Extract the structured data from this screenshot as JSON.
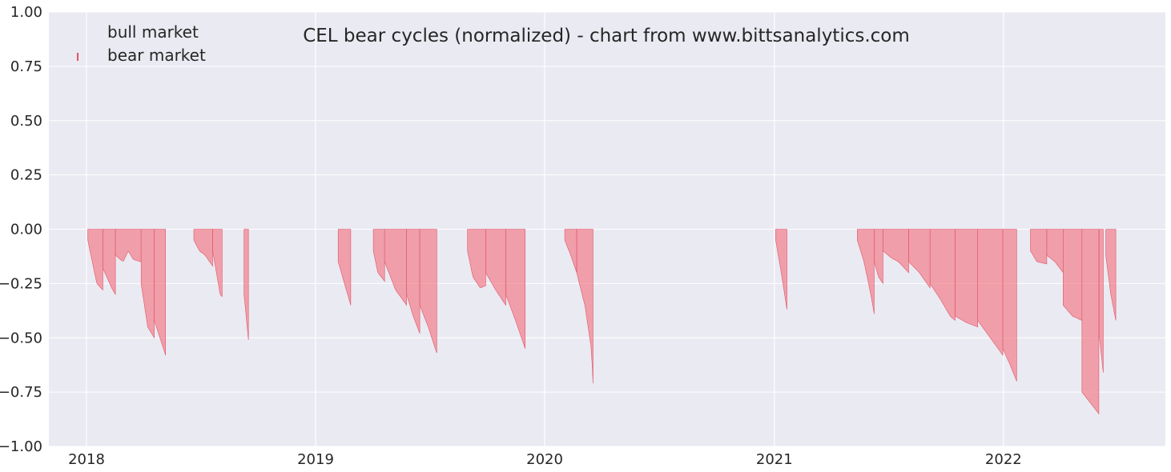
{
  "chart_data": {
    "type": "bar",
    "title": "CEL bear cycles (normalized)  - chart from www.bittsanalytics.com",
    "xlabel": "",
    "ylabel": "",
    "ylim": [
      -1.0,
      1.0
    ],
    "yticks": [
      "1.00",
      "0.75",
      "0.50",
      "0.25",
      "0.00",
      "−0.25",
      "−0.50",
      "−0.75",
      "−1.00"
    ],
    "ytick_values": [
      1.0,
      0.75,
      0.5,
      0.25,
      0.0,
      -0.25,
      -0.5,
      -0.75,
      -1.0
    ],
    "xlim": [
      "2017-11-01",
      "2022-09-15"
    ],
    "xticks": [
      {
        "date": "2017-12-31",
        "label": "2018"
      },
      {
        "date": "2018-12-31",
        "label": "2019"
      },
      {
        "date": "2019-12-31",
        "label": "2020"
      },
      {
        "date": "2020-12-31",
        "label": "2021"
      },
      {
        "date": "2021-12-31",
        "label": "2022"
      }
    ],
    "grid": true,
    "legend_position": "top-left",
    "colors": {
      "background": "#eaeaf2",
      "bear": "#f27d8b",
      "bear_edge": "#e05566",
      "bull": "#eaeaf2"
    },
    "series": [
      {
        "name": "bull market",
        "values": []
      },
      {
        "name": "bear market",
        "segments": [
          {
            "start": "2018-01-02",
            "end": "2018-01-26",
            "points": [
              [
                0,
                -0.05
              ],
              [
                0.3,
                -0.15
              ],
              [
                0.6,
                -0.25
              ],
              [
                1,
                -0.28
              ]
            ]
          },
          {
            "start": "2018-01-26",
            "end": "2018-02-15",
            "points": [
              [
                0,
                -0.18
              ],
              [
                0.4,
                -0.23
              ],
              [
                0.7,
                -0.27
              ],
              [
                1,
                -0.3
              ]
            ]
          },
          {
            "start": "2018-02-15",
            "end": "2018-03-28",
            "points": [
              [
                0,
                -0.12
              ],
              [
                0.3,
                -0.15
              ],
              [
                0.5,
                -0.1
              ],
              [
                0.7,
                -0.14
              ],
              [
                1,
                -0.15
              ]
            ]
          },
          {
            "start": "2018-03-28",
            "end": "2018-04-18",
            "points": [
              [
                0,
                -0.25
              ],
              [
                0.5,
                -0.45
              ],
              [
                1,
                -0.5
              ]
            ]
          },
          {
            "start": "2018-04-18",
            "end": "2018-05-06",
            "points": [
              [
                0,
                -0.42
              ],
              [
                0.5,
                -0.5
              ],
              [
                1,
                -0.58
              ]
            ]
          },
          {
            "start": "2018-06-20",
            "end": "2018-07-20",
            "points": [
              [
                0,
                -0.05
              ],
              [
                0.3,
                -0.1
              ],
              [
                0.6,
                -0.12
              ],
              [
                1,
                -0.17
              ]
            ]
          },
          {
            "start": "2018-07-20",
            "end": "2018-08-04",
            "points": [
              [
                0,
                -0.1
              ],
              [
                0.4,
                -0.2
              ],
              [
                0.8,
                -0.3
              ],
              [
                1,
                -0.31
              ]
            ]
          },
          {
            "start": "2018-09-08",
            "end": "2018-09-15",
            "points": [
              [
                0,
                -0.3
              ],
              [
                1,
                -0.51
              ]
            ]
          },
          {
            "start": "2019-02-05",
            "end": "2019-02-25",
            "points": [
              [
                0,
                -0.15
              ],
              [
                0.5,
                -0.25
              ],
              [
                1,
                -0.35
              ]
            ]
          },
          {
            "start": "2019-04-02",
            "end": "2019-04-20",
            "points": [
              [
                0,
                -0.1
              ],
              [
                0.4,
                -0.2
              ],
              [
                1,
                -0.24
              ]
            ]
          },
          {
            "start": "2019-04-20",
            "end": "2019-05-25",
            "points": [
              [
                0,
                -0.15
              ],
              [
                0.5,
                -0.28
              ],
              [
                1,
                -0.35
              ]
            ]
          },
          {
            "start": "2019-05-25",
            "end": "2019-06-15",
            "points": [
              [
                0,
                -0.3
              ],
              [
                0.5,
                -0.4
              ],
              [
                1,
                -0.48
              ]
            ]
          },
          {
            "start": "2019-06-15",
            "end": "2019-07-12",
            "points": [
              [
                0,
                -0.35
              ],
              [
                0.5,
                -0.45
              ],
              [
                1,
                -0.57
              ]
            ]
          },
          {
            "start": "2019-08-30",
            "end": "2019-09-28",
            "points": [
              [
                0,
                -0.1
              ],
              [
                0.3,
                -0.22
              ],
              [
                0.7,
                -0.27
              ],
              [
                1,
                -0.26
              ]
            ]
          },
          {
            "start": "2019-09-28",
            "end": "2019-10-30",
            "points": [
              [
                0,
                -0.2
              ],
              [
                0.5,
                -0.28
              ],
              [
                1,
                -0.35
              ]
            ]
          },
          {
            "start": "2019-10-30",
            "end": "2019-11-30",
            "points": [
              [
                0,
                -0.3
              ],
              [
                0.5,
                -0.42
              ],
              [
                1,
                -0.55
              ]
            ]
          },
          {
            "start": "2020-02-01",
            "end": "2020-02-20",
            "points": [
              [
                0,
                -0.05
              ],
              [
                0.5,
                -0.12
              ],
              [
                1,
                -0.2
              ]
            ]
          },
          {
            "start": "2020-02-20",
            "end": "2020-03-17",
            "points": [
              [
                0,
                -0.2
              ],
              [
                0.5,
                -0.35
              ],
              [
                0.9,
                -0.55
              ],
              [
                1,
                -0.71
              ]
            ]
          },
          {
            "start": "2021-01-02",
            "end": "2021-01-20",
            "points": [
              [
                0,
                -0.05
              ],
              [
                0.5,
                -0.2
              ],
              [
                1,
                -0.37
              ]
            ]
          },
          {
            "start": "2021-05-12",
            "end": "2021-06-08",
            "points": [
              [
                0,
                -0.05
              ],
              [
                0.4,
                -0.15
              ],
              [
                0.8,
                -0.3
              ],
              [
                1,
                -0.39
              ]
            ]
          },
          {
            "start": "2021-06-08",
            "end": "2021-06-22",
            "points": [
              [
                0,
                -0.15
              ],
              [
                0.5,
                -0.22
              ],
              [
                1,
                -0.25
              ]
            ]
          },
          {
            "start": "2021-06-22",
            "end": "2021-08-02",
            "points": [
              [
                0,
                -0.1
              ],
              [
                0.3,
                -0.13
              ],
              [
                0.6,
                -0.15
              ],
              [
                1,
                -0.2
              ]
            ]
          },
          {
            "start": "2021-08-02",
            "end": "2021-09-05",
            "points": [
              [
                0,
                -0.15
              ],
              [
                0.5,
                -0.2
              ],
              [
                1,
                -0.27
              ]
            ]
          },
          {
            "start": "2021-09-05",
            "end": "2021-10-15",
            "points": [
              [
                0,
                -0.25
              ],
              [
                0.4,
                -0.32
              ],
              [
                0.8,
                -0.4
              ],
              [
                1,
                -0.42
              ]
            ]
          },
          {
            "start": "2021-10-15",
            "end": "2021-11-20",
            "points": [
              [
                0,
                -0.4
              ],
              [
                0.5,
                -0.43
              ],
              [
                1,
                -0.45
              ]
            ]
          },
          {
            "start": "2021-11-20",
            "end": "2021-12-30",
            "points": [
              [
                0,
                -0.42
              ],
              [
                0.5,
                -0.5
              ],
              [
                1,
                -0.58
              ]
            ]
          },
          {
            "start": "2021-12-30",
            "end": "2022-01-21",
            "points": [
              [
                0,
                -0.55
              ],
              [
                0.5,
                -0.62
              ],
              [
                1,
                -0.7
              ]
            ]
          },
          {
            "start": "2022-02-12",
            "end": "2022-03-10",
            "points": [
              [
                0,
                -0.1
              ],
              [
                0.4,
                -0.15
              ],
              [
                1,
                -0.16
              ]
            ]
          },
          {
            "start": "2022-03-10",
            "end": "2022-04-05",
            "points": [
              [
                0,
                -0.12
              ],
              [
                0.5,
                -0.15
              ],
              [
                1,
                -0.2
              ]
            ]
          },
          {
            "start": "2022-04-05",
            "end": "2022-05-05",
            "points": [
              [
                0,
                -0.35
              ],
              [
                0.5,
                -0.4
              ],
              [
                1,
                -0.42
              ]
            ]
          },
          {
            "start": "2022-05-05",
            "end": "2022-06-01",
            "points": [
              [
                0,
                -0.75
              ],
              [
                0.5,
                -0.8
              ],
              [
                1,
                -0.85
              ]
            ]
          },
          {
            "start": "2022-06-02",
            "end": "2022-06-08",
            "points": [
              [
                0,
                -0.5
              ],
              [
                1,
                -0.66
              ]
            ]
          },
          {
            "start": "2022-06-12",
            "end": "2022-06-28",
            "points": [
              [
                0,
                -0.12
              ],
              [
                0.5,
                -0.3
              ],
              [
                1,
                -0.42
              ]
            ]
          }
        ]
      }
    ]
  }
}
